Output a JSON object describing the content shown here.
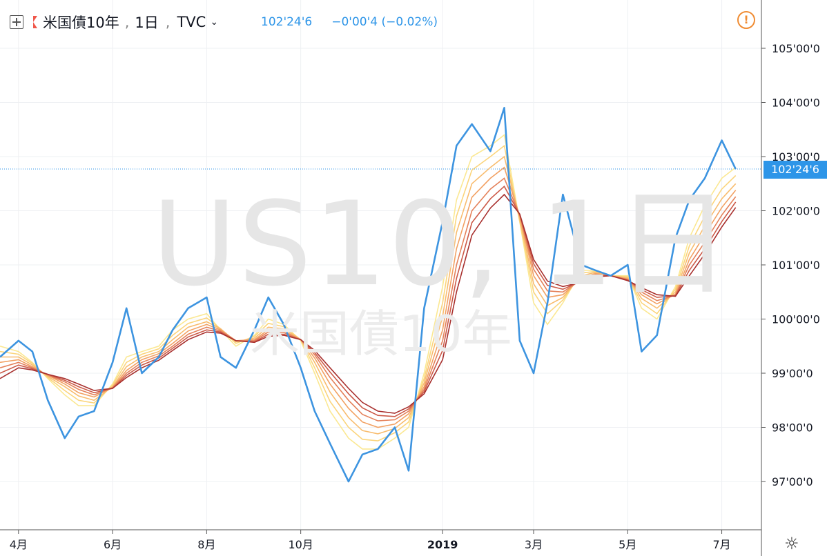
{
  "header": {
    "symbol": "米国債10年",
    "interval": "1日",
    "exchange": "TVC",
    "price": "102'24'6",
    "change": "−0'00'4 (−0.02%)",
    "accent_color": "#2d95e8",
    "symbol_flag_color": "#f0574a",
    "warning_color": "#f08c33"
  },
  "watermark": {
    "ticker": "US10, 1日",
    "name": "米国債10年"
  },
  "icons": [
    "add-symbol-icon",
    "flag-icon",
    "chevron-down-icon",
    "warning-icon",
    "settings-icon"
  ],
  "chart_data": {
    "type": "line",
    "title": "",
    "xlabel": "",
    "ylabel": "",
    "x_ticks": [
      "4月",
      "6月",
      "8月",
      "10月",
      "2019",
      "3月",
      "5月",
      "7月"
    ],
    "y_ticks": [
      "97'00'0",
      "98'00'0",
      "99'00'0",
      "100'00'0",
      "101'00'0",
      "102'00'0",
      "103'00'0",
      "104'00'0",
      "105'00'0"
    ],
    "ylim": [
      96.3,
      105.8
    ],
    "last_price_label": "102'24'6",
    "last_price_value": 102.77,
    "grid": true,
    "legend": "none",
    "series": [
      {
        "role": "price",
        "color": "#3d94e0",
        "x": [
          "2018-03-20",
          "2018-04-01",
          "2018-04-10",
          "2018-04-20",
          "2018-05-01",
          "2018-05-10",
          "2018-05-20",
          "2018-06-01",
          "2018-06-10",
          "2018-06-20",
          "2018-07-01",
          "2018-07-10",
          "2018-07-20",
          "2018-08-01",
          "2018-08-10",
          "2018-08-20",
          "2018-09-01",
          "2018-09-10",
          "2018-09-20",
          "2018-10-01",
          "2018-10-10",
          "2018-10-20",
          "2018-11-01",
          "2018-11-10",
          "2018-11-20",
          "2018-12-01",
          "2018-12-10",
          "2018-12-20",
          "2019-01-01",
          "2019-01-10",
          "2019-01-20",
          "2019-02-01",
          "2019-02-10",
          "2019-02-20",
          "2019-03-01",
          "2019-03-10",
          "2019-03-20",
          "2019-04-01",
          "2019-04-10",
          "2019-04-20",
          "2019-05-01",
          "2019-05-10",
          "2019-05-20",
          "2019-06-01",
          "2019-06-10",
          "2019-06-20",
          "2019-07-01",
          "2019-07-10"
        ],
        "values": [
          99.3,
          99.6,
          99.4,
          98.5,
          97.8,
          98.2,
          98.3,
          99.2,
          100.2,
          99.0,
          99.3,
          99.8,
          100.2,
          100.4,
          99.3,
          99.1,
          99.8,
          100.4,
          99.9,
          99.1,
          98.3,
          97.7,
          97.0,
          97.5,
          97.6,
          98.0,
          97.2,
          100.2,
          101.8,
          103.2,
          103.6,
          103.1,
          103.9,
          99.6,
          99.0,
          100.3,
          102.3,
          101.0,
          100.9,
          100.8,
          101.0,
          99.4,
          99.7,
          101.5,
          102.2,
          102.6,
          103.3,
          102.77
        ]
      },
      {
        "role": "ribbon",
        "color": "#fbe892",
        "values": [
          99.5,
          99.4,
          99.2,
          98.9,
          98.6,
          98.4,
          98.4,
          98.8,
          99.3,
          99.4,
          99.5,
          99.8,
          100.0,
          100.1,
          99.8,
          99.5,
          99.7,
          100.0,
          99.9,
          99.6,
          99.0,
          98.3,
          97.8,
          97.6,
          97.6,
          97.8,
          98.0,
          99.0,
          100.6,
          102.2,
          103.0,
          103.2,
          103.4,
          101.8,
          100.3,
          99.9,
          100.3,
          100.9,
          100.9,
          100.8,
          100.8,
          100.2,
          100.0,
          100.6,
          101.5,
          102.1,
          102.6,
          102.8
        ]
      },
      {
        "role": "ribbon",
        "color": "#fbd57c",
        "values": [
          99.4,
          99.35,
          99.18,
          98.92,
          98.68,
          98.5,
          98.45,
          98.78,
          99.2,
          99.35,
          99.45,
          99.7,
          99.92,
          100.02,
          99.82,
          99.55,
          99.68,
          99.92,
          99.86,
          99.62,
          99.1,
          98.48,
          98.0,
          97.78,
          97.75,
          97.9,
          98.1,
          98.9,
          100.3,
          101.9,
          102.75,
          103.0,
          103.2,
          101.8,
          100.5,
          100.1,
          100.35,
          100.85,
          100.88,
          100.8,
          100.78,
          100.3,
          100.1,
          100.55,
          101.35,
          101.9,
          102.4,
          102.65
        ]
      },
      {
        "role": "ribbon",
        "color": "#f8bc6e",
        "values": [
          99.3,
          99.3,
          99.15,
          98.94,
          98.75,
          98.58,
          98.5,
          98.75,
          99.12,
          99.3,
          99.4,
          99.62,
          99.85,
          99.95,
          99.82,
          99.58,
          99.65,
          99.85,
          99.82,
          99.62,
          99.2,
          98.65,
          98.18,
          97.94,
          97.88,
          97.98,
          98.18,
          98.82,
          100.05,
          101.6,
          102.5,
          102.8,
          103.0,
          101.85,
          100.65,
          100.25,
          100.4,
          100.8,
          100.86,
          100.8,
          100.76,
          100.38,
          100.2,
          100.5,
          101.22,
          101.72,
          102.22,
          102.5
        ]
      },
      {
        "role": "ribbon",
        "color": "#f2a163",
        "values": [
          99.2,
          99.25,
          99.12,
          98.96,
          98.8,
          98.64,
          98.56,
          98.74,
          99.05,
          99.25,
          99.36,
          99.55,
          99.78,
          99.9,
          99.8,
          99.6,
          99.62,
          99.8,
          99.78,
          99.62,
          99.28,
          98.8,
          98.35,
          98.1,
          98.0,
          98.06,
          98.25,
          98.75,
          99.8,
          101.3,
          102.25,
          102.6,
          102.8,
          101.9,
          100.8,
          100.4,
          100.45,
          100.76,
          100.84,
          100.8,
          100.74,
          100.45,
          100.28,
          100.46,
          101.1,
          101.56,
          102.06,
          102.38
        ]
      },
      {
        "role": "ribbon",
        "color": "#e4815a",
        "values": [
          99.1,
          99.2,
          99.1,
          98.97,
          98.84,
          98.7,
          98.6,
          98.73,
          99.0,
          99.2,
          99.32,
          99.5,
          99.72,
          99.85,
          99.78,
          99.6,
          99.6,
          99.76,
          99.75,
          99.62,
          99.34,
          98.92,
          98.5,
          98.24,
          98.12,
          98.14,
          98.3,
          98.7,
          99.6,
          101.0,
          102.0,
          102.4,
          102.6,
          101.92,
          100.92,
          100.52,
          100.5,
          100.73,
          100.82,
          100.8,
          100.73,
          100.5,
          100.34,
          100.44,
          101.0,
          101.42,
          101.92,
          102.26
        ]
      },
      {
        "role": "ribbon",
        "color": "#cc5a48",
        "values": [
          99.0,
          99.15,
          99.08,
          98.98,
          98.87,
          98.75,
          98.64,
          98.72,
          98.96,
          99.15,
          99.28,
          99.46,
          99.67,
          99.8,
          99.76,
          99.6,
          99.58,
          99.72,
          99.72,
          99.62,
          99.38,
          99.02,
          98.62,
          98.36,
          98.22,
          98.2,
          98.34,
          98.66,
          99.42,
          100.75,
          101.78,
          102.22,
          102.45,
          101.93,
          101.02,
          100.62,
          100.55,
          100.7,
          100.8,
          100.8,
          100.72,
          100.54,
          100.4,
          100.43,
          100.9,
          101.3,
          101.8,
          102.16
        ]
      },
      {
        "role": "ribbon",
        "color": "#a8302e",
        "values": [
          98.9,
          99.1,
          99.06,
          98.98,
          98.9,
          98.8,
          98.68,
          98.72,
          98.92,
          99.1,
          99.24,
          99.42,
          99.62,
          99.76,
          99.74,
          99.6,
          99.57,
          99.68,
          99.7,
          99.62,
          99.42,
          99.1,
          98.72,
          98.46,
          98.3,
          98.26,
          98.38,
          98.62,
          99.25,
          100.5,
          101.55,
          102.05,
          102.3,
          101.94,
          101.1,
          100.7,
          100.6,
          100.68,
          100.78,
          100.8,
          100.71,
          100.58,
          100.45,
          100.42,
          100.8,
          101.2,
          101.7,
          102.06
        ]
      }
    ]
  }
}
